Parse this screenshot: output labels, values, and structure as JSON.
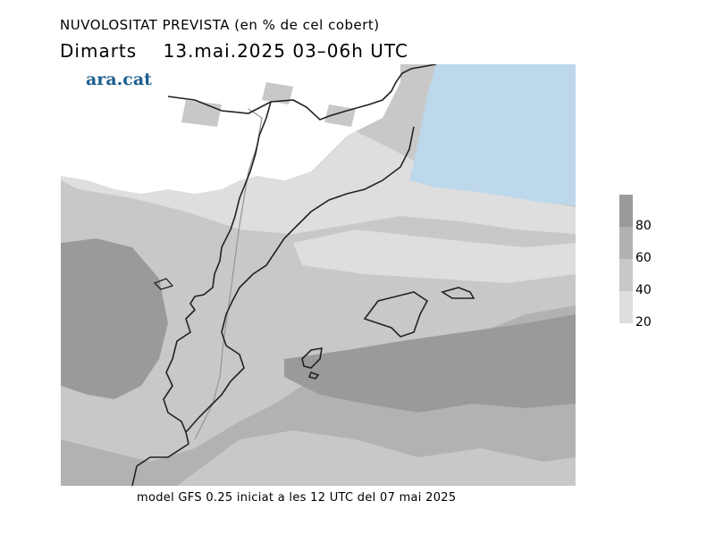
{
  "header": {
    "title": "NUVOLOSITAT PREVISTA (en % de cel cobert)",
    "day": "Dimarts",
    "date_time": "13.mai.2025 03–06h UTC"
  },
  "logo": {
    "text": "ara.cat"
  },
  "footer": {
    "text": "model GFS 0.25 iniciat a les 12 UTC del 07 mai 2025"
  },
  "legend": {
    "ticks": [
      "80",
      "60",
      "40",
      "20"
    ],
    "bands": [
      {
        "level": "80-100",
        "color": "#9a9a9a"
      },
      {
        "level": "60-80",
        "color": "#b2b2b2"
      },
      {
        "level": "40-60",
        "color": "#c8c8c8"
      },
      {
        "level": "20-40",
        "color": "#dedede"
      }
    ]
  },
  "map": {
    "colors": {
      "sea_clear": "#bcd8ea",
      "clear_land": "#ffffff",
      "level_20": "#dedede",
      "level_40": "#c8c8c8",
      "level_60": "#b2b2b2",
      "level_80": "#9a9a9a",
      "coast": "#222222",
      "border_faint": "#999999"
    }
  }
}
